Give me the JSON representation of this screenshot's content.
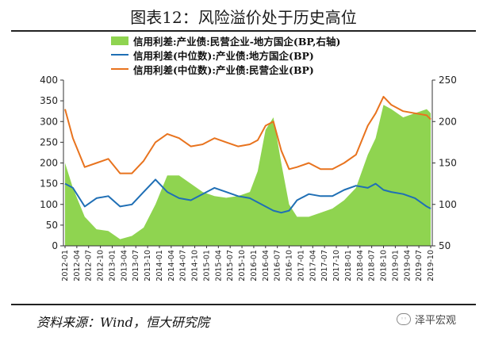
{
  "title": "图表12：风险溢价处于历史高位",
  "source": "资料来源：Wind，恒大研究院",
  "watermark": "泽平宏观",
  "colors": {
    "area": "#8fd450",
    "blue": "#1f6fb5",
    "orange": "#e8731e"
  },
  "chart_data": {
    "type": "line",
    "legend": [
      "信用利差:产业债:民营企业-地方国企(BP,右轴)",
      "信用利差(中位数):产业债:地方国企(BP)",
      "信用利差(中位数):产业债:民营企业(BP)"
    ],
    "x_ticks": [
      "2012-01",
      "2012-04",
      "2012-07",
      "2012-10",
      "2013-01",
      "2013-04",
      "2013-07",
      "2013-10",
      "2014-01",
      "2014-04",
      "2014-07",
      "2014-10",
      "2015-01",
      "2015-04",
      "2015-07",
      "2015-10",
      "2016-01",
      "2016-04",
      "2016-07",
      "2016-10",
      "2017-01",
      "2017-04",
      "2017-07",
      "2017-10",
      "2018-01",
      "2018-04",
      "2018-07",
      "2018-10",
      "2019-01",
      "2019-04",
      "2019-07",
      "2019-10"
    ],
    "y_left": {
      "min": 0,
      "max": 400,
      "ticks": [
        0,
        50,
        100,
        150,
        200,
        250,
        300,
        350,
        400
      ]
    },
    "y_right": {
      "min": 50,
      "max": 250,
      "ticks": [
        50,
        100,
        150,
        200,
        250
      ]
    },
    "grid": false,
    "legend_position": "top",
    "series": [
      {
        "name": "信用利差:产业债:民营企业-地方国企(BP,右轴)",
        "type": "area",
        "axis": "right",
        "x": [
          "2012-01",
          "2012-03",
          "2012-06",
          "2012-09",
          "2012-12",
          "2013-03",
          "2013-06",
          "2013-09",
          "2013-12",
          "2014-03",
          "2014-06",
          "2014-09",
          "2014-12",
          "2015-03",
          "2015-06",
          "2015-09",
          "2015-12",
          "2016-02",
          "2016-04",
          "2016-06",
          "2016-08",
          "2016-10",
          "2016-12",
          "2017-03",
          "2017-06",
          "2017-09",
          "2017-12",
          "2018-03",
          "2018-06",
          "2018-08",
          "2018-10",
          "2018-12",
          "2019-03",
          "2019-06",
          "2019-09",
          "2019-10"
        ],
        "values": [
          150,
          120,
          85,
          70,
          68,
          58,
          62,
          72,
          100,
          135,
          135,
          125,
          115,
          110,
          108,
          110,
          115,
          140,
          190,
          205,
          150,
          100,
          85,
          85,
          90,
          95,
          105,
          120,
          160,
          180,
          220,
          215,
          205,
          210,
          215,
          210
        ]
      },
      {
        "name": "信用利差(中位数):产业债:地方国企(BP)",
        "type": "line",
        "axis": "left",
        "x": [
          "2012-01",
          "2012-03",
          "2012-06",
          "2012-09",
          "2012-12",
          "2013-03",
          "2013-06",
          "2013-09",
          "2013-12",
          "2014-03",
          "2014-06",
          "2014-09",
          "2014-12",
          "2015-03",
          "2015-06",
          "2015-09",
          "2015-12",
          "2016-02",
          "2016-04",
          "2016-06",
          "2016-08",
          "2016-10",
          "2016-12",
          "2017-03",
          "2017-06",
          "2017-09",
          "2017-12",
          "2018-03",
          "2018-06",
          "2018-08",
          "2018-10",
          "2018-12",
          "2019-03",
          "2019-06",
          "2019-09",
          "2019-10"
        ],
        "values": [
          150,
          140,
          95,
          115,
          120,
          95,
          100,
          130,
          160,
          130,
          115,
          110,
          125,
          140,
          130,
          120,
          115,
          105,
          95,
          85,
          80,
          85,
          110,
          125,
          120,
          120,
          135,
          145,
          140,
          150,
          135,
          130,
          125,
          115,
          95,
          90
        ]
      },
      {
        "name": "信用利差(中位数):产业债:民营企业(BP)",
        "type": "line",
        "axis": "left",
        "x": [
          "2012-01",
          "2012-03",
          "2012-06",
          "2012-09",
          "2012-12",
          "2013-03",
          "2013-06",
          "2013-09",
          "2013-12",
          "2014-03",
          "2014-06",
          "2014-09",
          "2014-12",
          "2015-03",
          "2015-06",
          "2015-09",
          "2015-12",
          "2016-02",
          "2016-04",
          "2016-06",
          "2016-08",
          "2016-10",
          "2016-12",
          "2017-03",
          "2017-06",
          "2017-09",
          "2017-12",
          "2018-03",
          "2018-06",
          "2018-08",
          "2018-10",
          "2018-12",
          "2019-03",
          "2019-06",
          "2019-09",
          "2019-10"
        ],
        "values": [
          330,
          260,
          190,
          200,
          210,
          175,
          175,
          205,
          250,
          270,
          260,
          240,
          245,
          260,
          250,
          240,
          245,
          255,
          290,
          300,
          230,
          185,
          190,
          200,
          185,
          185,
          200,
          220,
          290,
          320,
          360,
          340,
          325,
          320,
          315,
          305
        ]
      }
    ]
  }
}
